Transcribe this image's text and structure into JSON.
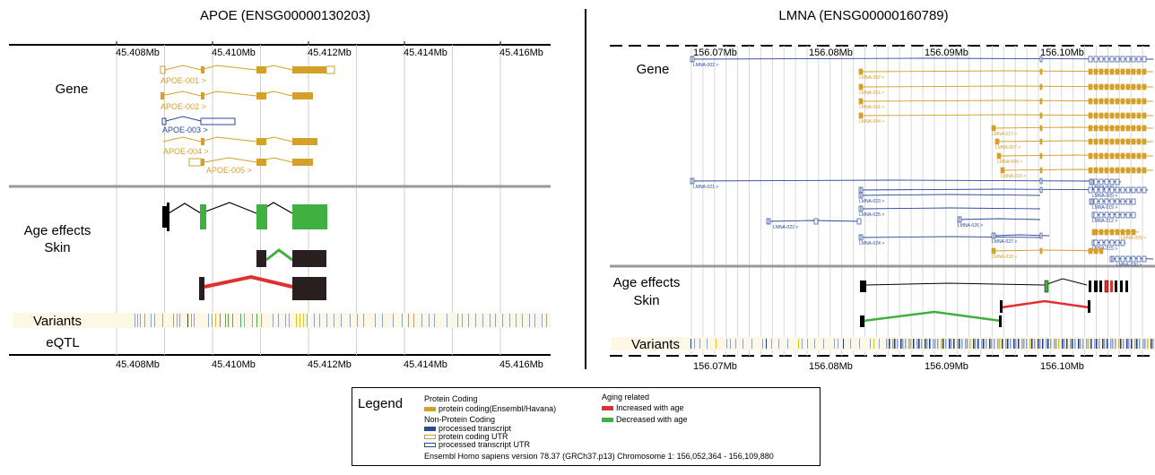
{
  "apoe": {
    "title": "APOE (ENSG00000130203)",
    "ticks": [
      "45.408Mb",
      "45.410Mb",
      "45.412Mb",
      "45.414Mb",
      "45.416Mb"
    ],
    "track_gene": "Gene",
    "track_age": [
      "Age effects",
      "Skin"
    ],
    "track_variants": "Variants",
    "track_eqtl": "eQTL",
    "transcripts": [
      "APOE-001 >",
      "APOE-002 >",
      "APOE-003 >",
      "APOE-004 >",
      "APOE-005 >"
    ]
  },
  "lmna": {
    "title": "LMNA (ENSG00000160789)",
    "ticks": [
      "156.07Mb",
      "156.08Mb",
      "156.09Mb",
      "156.10Mb"
    ],
    "track_gene": "Gene",
    "track_age": [
      "Age effects",
      "Skin"
    ],
    "track_variants": "Variants",
    "transcripts": [
      "LMNA-002 >",
      "LMNA-202 >",
      "LMNA-201 >",
      "LMNA-001 >",
      "LMNA-004 >",
      "LMNA-017 >",
      "LMNA-007 >",
      "LMNA-008 >",
      "LMNA-010 >",
      "LMNA-021 >",
      "LMNA-029 >",
      "LMNA-005 >",
      "LMNA-023 >",
      "LMNA-019 >",
      "LMNA-025 >",
      "LMNA-012 >",
      "LMNA-022 >",
      "LMNA-026 >",
      "LMNA-009 >",
      "LMNA-024 >",
      "LMNA-027 >",
      "LMNA-015 >",
      "LMNA-028 >",
      "LMNA-030 >"
    ]
  },
  "legend": {
    "title": "Legend",
    "protein_coding_head": "Protein Coding",
    "protein_coding_item": "protein coding(Ensembl/Havana)",
    "non_protein_head": "Non-Protein Coding",
    "processed_transcript": "processed transcript",
    "protein_coding_utr": "protein coding UTR",
    "processed_transcript_utr": "processed transcript UTR",
    "aging_head": "Aging related",
    "increased": "Increased with age",
    "decreased": "Decreased with age",
    "footer": "Ensembl Homo sapiens version 78.37 (GRCh37.p13) Chromosome 1: 156,052,364 - 156,109,880"
  },
  "colors": {
    "protein_coding": "#d4a02a",
    "processed": "#2a4a9a",
    "increased": "#e03030",
    "decreased": "#40b040",
    "exon_dark": "#2a1f1f",
    "variant_bg": "#fdf8e6"
  }
}
